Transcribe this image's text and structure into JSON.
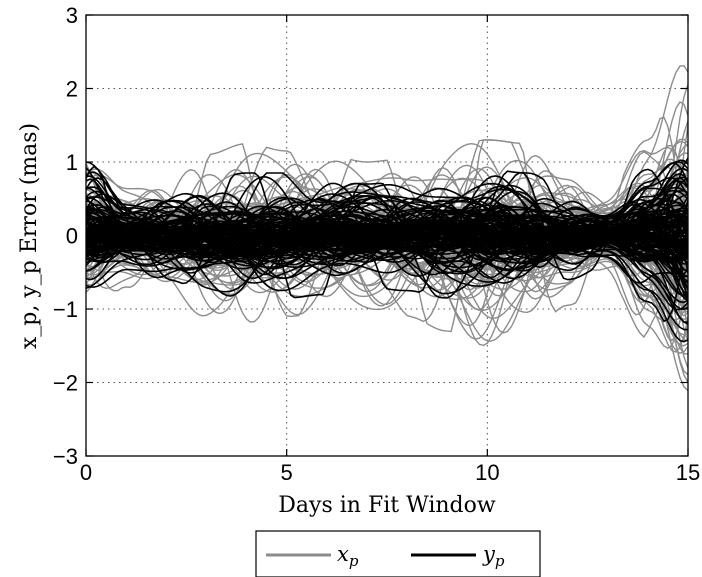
{
  "chart_data": {
    "type": "line",
    "title": "",
    "xlabel": "Days in Fit Window",
    "ylabel": "x_p, y_p Error (mas)",
    "xlim": [
      0,
      15
    ],
    "ylim": [
      -3,
      3
    ],
    "xticks": [
      0,
      5,
      10,
      15
    ],
    "yticks": [
      -3,
      -2,
      -1,
      0,
      1,
      2,
      3
    ],
    "xtick_labels": [
      "0",
      "5",
      "10",
      "15"
    ],
    "ytick_labels": [
      "−3",
      "−2",
      "−1",
      "0",
      "1",
      "2",
      "3"
    ],
    "grid": true,
    "legend": "bottom-center, outside",
    "series": [
      {
        "name": "x_p",
        "name_base": "x",
        "name_sub": "p",
        "color": "#8c8c8c",
        "note": "ensemble of many error curves",
        "envelope": {
          "x": [
            0,
            1,
            2,
            3,
            4,
            5,
            6,
            7,
            8,
            9,
            10,
            11,
            12,
            13,
            14,
            15
          ],
          "upper": [
            1.2,
            0.7,
            0.9,
            1.1,
            1.25,
            1.15,
            1.1,
            1.0,
            1.05,
            1.2,
            1.3,
            1.25,
            0.9,
            0.6,
            1.3,
            2.7
          ],
          "lower": [
            -1.2,
            -0.7,
            -0.9,
            -1.1,
            -1.2,
            -1.1,
            -1.05,
            -1.0,
            -1.1,
            -1.3,
            -1.5,
            -1.4,
            -0.95,
            -0.6,
            -1.4,
            -3.0
          ]
        }
      },
      {
        "name": "y_p",
        "name_base": "y",
        "name_sub": "p",
        "color": "#000000",
        "note": "ensemble of many error curves",
        "envelope": {
          "x": [
            0,
            1,
            2,
            3,
            4,
            5,
            6,
            7,
            8,
            9,
            10,
            11,
            12,
            13,
            14,
            15
          ],
          "upper": [
            1.0,
            0.5,
            0.6,
            0.75,
            0.85,
            0.85,
            0.8,
            0.7,
            0.75,
            0.85,
            0.9,
            0.85,
            0.6,
            0.4,
            0.9,
            1.6
          ],
          "lower": [
            -0.9,
            -0.5,
            -0.6,
            -0.75,
            -0.9,
            -0.85,
            -0.8,
            -0.7,
            -0.75,
            -0.85,
            -0.9,
            -0.85,
            -0.6,
            -0.4,
            -0.9,
            -1.7
          ]
        }
      }
    ]
  }
}
